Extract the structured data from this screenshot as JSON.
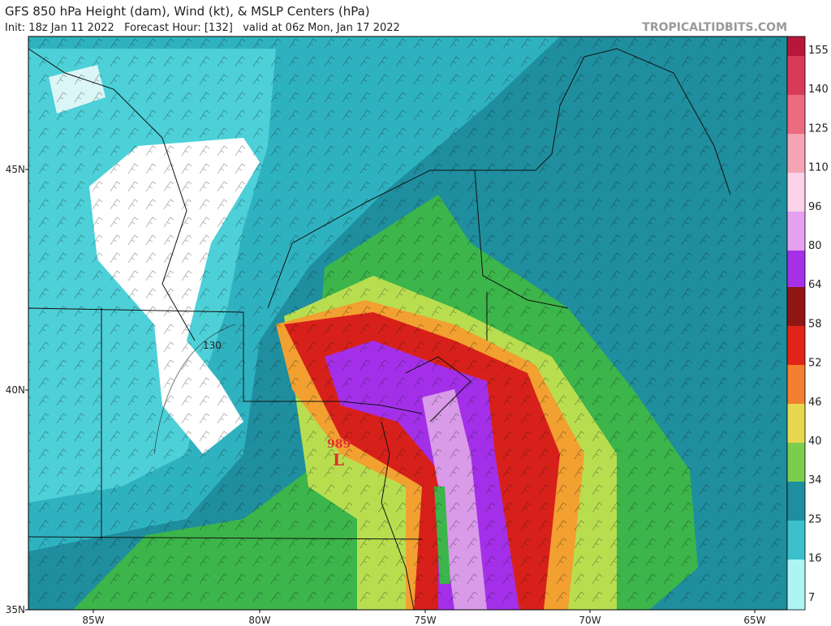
{
  "header": {
    "title": "GFS 850 hPa Height (dam), Wind (kt), & MSLP Centers (hPa)",
    "subtitle": "Init: 18z Jan 11 2022   Forecast Hour: [132]   valid at 06z Mon, Jan 17 2022",
    "watermark": "TROPICALTIDBITS.COM"
  },
  "map": {
    "lat_labels": [
      "45N",
      "40N",
      "35N"
    ],
    "lon_labels": [
      "85W",
      "80W",
      "75W",
      "70W",
      "65W"
    ],
    "annotations": {
      "pressure": "989",
      "low": "L",
      "contour": "130"
    }
  },
  "colorbar": {
    "labels": [
      "155",
      "140",
      "125",
      "110",
      "96",
      "80",
      "64",
      "58",
      "52",
      "46",
      "40",
      "34",
      "25",
      "16",
      "7"
    ]
  }
}
